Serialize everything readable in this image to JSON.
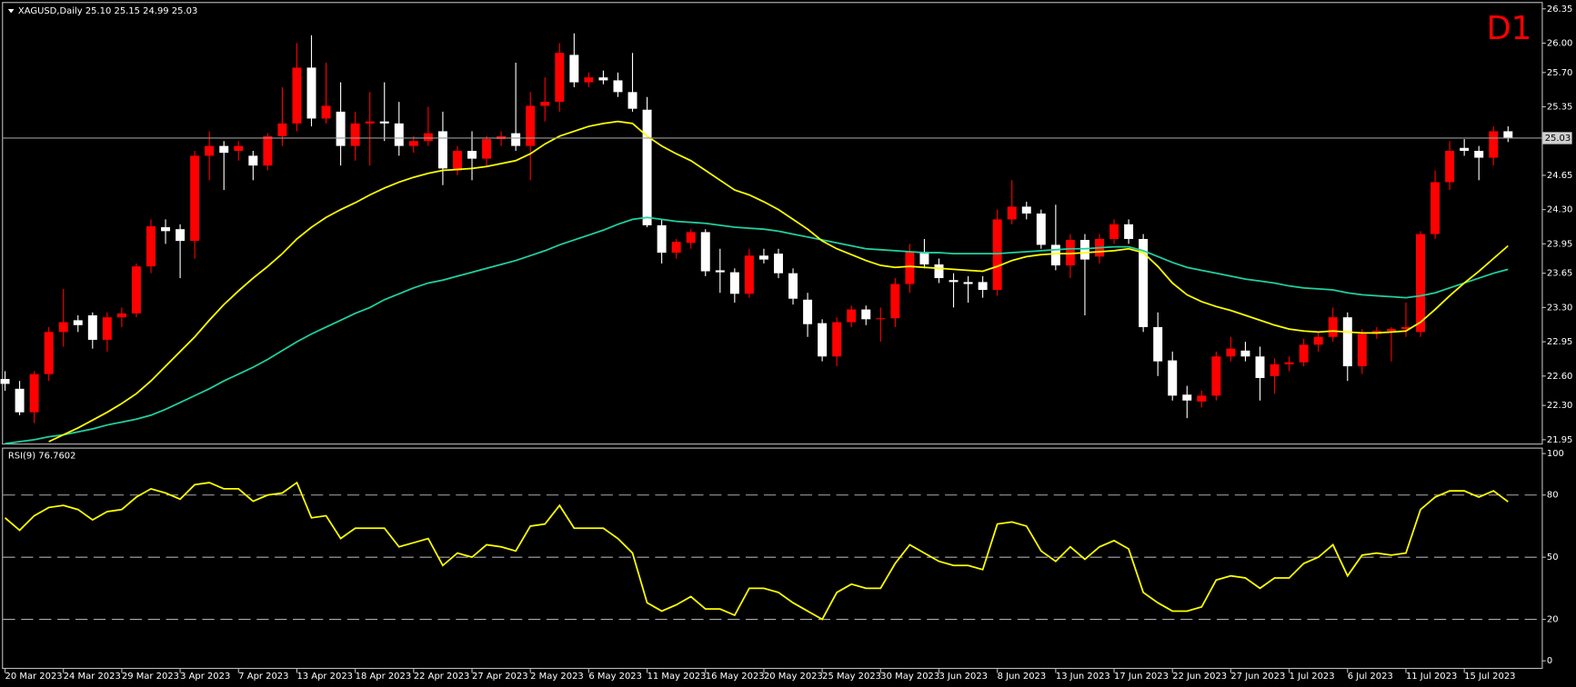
{
  "chart_data": [
    {
      "type": "candlestick",
      "title": "XAGUSD,Daily  25.10 25.15 24.99 25.03",
      "timeframe": "D1",
      "categories": [
        "20 Mar 2023",
        null,
        null,
        null,
        "24 Mar 2023",
        null,
        null,
        null,
        "29 Mar 2023",
        null,
        null,
        null,
        "3 Apr 2023",
        null,
        null,
        null,
        "7 Apr 2023",
        null,
        null,
        null,
        "13 Apr 2023",
        null,
        null,
        null,
        "18 Apr 2023",
        null,
        null,
        null,
        "22 Apr 2023",
        null,
        null,
        null,
        "27 Apr 2023",
        null,
        null,
        null,
        "2 May 2023",
        null,
        null,
        null,
        "6 May 2023",
        null,
        null,
        null,
        "11 May 2023",
        null,
        null,
        null,
        "16 May 2023",
        null,
        null,
        null,
        "20 May 2023",
        null,
        null,
        null,
        "25 May 2023",
        null,
        null,
        null,
        "30 May 2023",
        null,
        null,
        null,
        "3 Jun 2023",
        null,
        null,
        null,
        "8 Jun 2023",
        null,
        null,
        null,
        "13 Jun 2023",
        null,
        null,
        null,
        "17 Jun 2023",
        null,
        null,
        null,
        "22 Jun 2023",
        null,
        null,
        null,
        "27 Jun 2023",
        null,
        null,
        null,
        "1 Jul 2023",
        null,
        null,
        null,
        "6 Jul 2023",
        null,
        null,
        null,
        "11 Jul 2023",
        null,
        null,
        null,
        "15 Jul 2023",
        null,
        null,
        null
      ],
      "open": [
        22.57,
        22.47,
        22.23,
        22.62,
        23.05,
        23.17,
        23.22,
        22.97,
        23.2,
        23.24,
        23.72,
        24.12,
        24.1,
        23.98,
        24.85,
        24.95,
        24.9,
        24.85,
        24.75,
        25.05,
        25.18,
        25.75,
        25.23,
        25.3,
        24.95,
        25.18,
        25.2,
        25.18,
        24.95,
        25.0,
        25.1,
        24.7,
        24.9,
        24.82,
        25.02,
        25.08,
        24.95,
        25.36,
        25.4,
        25.88,
        25.6,
        25.65,
        25.62,
        25.5,
        25.32,
        24.14,
        23.86,
        23.96,
        24.07,
        23.68,
        23.66,
        23.44,
        23.83,
        23.85,
        23.65,
        23.38,
        23.14,
        22.8,
        23.15,
        23.28,
        23.18,
        23.19,
        23.54,
        23.87,
        23.74,
        23.58,
        23.56,
        23.56,
        23.48,
        24.2,
        24.33,
        24.26,
        23.94,
        23.73,
        23.99,
        23.82,
        24.0,
        24.15,
        24.0,
        23.1,
        22.76,
        22.41,
        22.34,
        22.4,
        22.8,
        22.86,
        22.8,
        22.6,
        22.72,
        22.74,
        22.92,
        23.0,
        23.2,
        22.7,
        23.03,
        23.06,
        23.08,
        23.05,
        24.05,
        24.58,
        24.93,
        24.9,
        24.83,
        25.1
      ],
      "high": [
        22.65,
        22.55,
        22.65,
        23.1,
        23.49,
        23.22,
        23.25,
        23.25,
        23.3,
        23.75,
        24.2,
        24.2,
        24.15,
        24.9,
        25.1,
        25.0,
        25.0,
        24.9,
        25.08,
        25.55,
        26.0,
        26.08,
        25.8,
        25.6,
        25.3,
        25.5,
        25.6,
        25.4,
        25.05,
        25.35,
        25.3,
        24.95,
        25.1,
        25.05,
        25.1,
        25.8,
        25.5,
        25.65,
        26.0,
        26.1,
        25.7,
        25.72,
        25.7,
        25.9,
        25.45,
        24.2,
        24.0,
        24.1,
        24.1,
        23.9,
        23.7,
        23.9,
        23.9,
        23.9,
        23.7,
        23.45,
        23.18,
        23.2,
        23.32,
        23.32,
        23.3,
        23.6,
        23.95,
        24.0,
        23.8,
        23.65,
        23.62,
        23.62,
        24.3,
        24.6,
        24.38,
        24.3,
        24.35,
        24.05,
        24.05,
        24.05,
        24.2,
        24.2,
        24.05,
        23.25,
        22.85,
        22.5,
        22.45,
        22.85,
        23.0,
        22.95,
        22.9,
        22.78,
        22.8,
        22.98,
        23.05,
        23.3,
        23.25,
        23.08,
        23.1,
        23.1,
        23.35,
        24.08,
        24.7,
        25.0,
        25.02,
        24.95,
        25.15,
        25.15
      ],
      "low": [
        22.45,
        22.2,
        22.12,
        22.55,
        22.9,
        23.05,
        22.88,
        22.85,
        23.1,
        23.2,
        23.65,
        23.95,
        23.6,
        23.8,
        24.6,
        24.5,
        24.8,
        24.6,
        24.7,
        24.95,
        25.1,
        25.15,
        25.18,
        24.75,
        24.8,
        24.75,
        25.0,
        24.85,
        24.88,
        24.95,
        24.55,
        24.65,
        24.6,
        24.75,
        24.95,
        24.9,
        24.6,
        25.2,
        25.3,
        25.55,
        25.55,
        25.58,
        25.45,
        25.3,
        24.12,
        23.75,
        23.8,
        23.9,
        23.62,
        23.45,
        23.35,
        23.4,
        23.75,
        23.6,
        23.33,
        23.0,
        22.75,
        22.7,
        23.1,
        23.12,
        22.95,
        23.1,
        23.45,
        23.7,
        23.55,
        23.3,
        23.35,
        23.4,
        23.42,
        24.15,
        24.2,
        23.9,
        23.68,
        23.6,
        23.22,
        23.75,
        23.95,
        23.95,
        23.05,
        22.6,
        22.35,
        22.17,
        22.28,
        22.35,
        22.75,
        22.75,
        22.35,
        22.42,
        22.65,
        22.7,
        22.85,
        22.95,
        22.55,
        22.62,
        22.98,
        22.75,
        23.0,
        23.0,
        24.0,
        24.5,
        24.85,
        24.6,
        24.75,
        24.99
      ],
      "close": [
        22.52,
        22.23,
        22.62,
        23.05,
        23.15,
        23.12,
        22.97,
        23.2,
        23.24,
        23.72,
        24.13,
        24.08,
        23.98,
        24.85,
        24.95,
        24.88,
        24.95,
        24.75,
        25.05,
        25.18,
        25.75,
        25.23,
        25.36,
        24.95,
        25.18,
        25.2,
        25.18,
        24.95,
        25.0,
        25.08,
        24.72,
        24.9,
        24.82,
        25.02,
        25.05,
        24.95,
        25.36,
        25.4,
        25.9,
        25.6,
        25.65,
        25.62,
        25.5,
        25.33,
        24.14,
        23.86,
        23.97,
        24.07,
        23.67,
        23.66,
        23.44,
        23.83,
        23.79,
        23.65,
        23.39,
        23.13,
        22.8,
        23.15,
        23.28,
        23.18,
        23.19,
        23.54,
        23.87,
        23.74,
        23.6,
        23.56,
        23.54,
        23.48,
        24.2,
        24.33,
        24.26,
        23.94,
        23.73,
        23.99,
        23.79,
        24.0,
        24.15,
        24.0,
        23.1,
        22.75,
        22.4,
        22.35,
        22.4,
        22.8,
        22.88,
        22.8,
        22.58,
        22.72,
        22.74,
        22.92,
        23.0,
        23.2,
        22.7,
        23.03,
        23.06,
        23.08,
        23.1,
        24.05,
        24.58,
        24.9,
        24.9,
        24.83,
        25.1,
        25.03
      ],
      "up_color": "#ff0000",
      "down_color": "#ffffff",
      "lines": [
        {
          "color": "#20d0a0",
          "values": [
            21.91,
            21.93,
            21.95,
            21.98,
            22.0,
            22.03,
            22.06,
            22.1,
            22.13,
            22.16,
            22.2,
            22.26,
            22.33,
            22.4,
            22.47,
            22.55,
            22.62,
            22.69,
            22.77,
            22.86,
            22.95,
            23.03,
            23.1,
            23.17,
            23.24,
            23.3,
            23.38,
            23.44,
            23.5,
            23.55,
            23.58,
            23.62,
            23.66,
            23.7,
            23.74,
            23.78,
            23.83,
            23.88,
            23.94,
            23.99,
            24.04,
            24.09,
            24.15,
            24.2,
            24.22,
            24.2,
            24.18,
            24.17,
            24.16,
            24.14,
            24.12,
            24.11,
            24.1,
            24.08,
            24.05,
            24.02,
            23.99,
            23.96,
            23.93,
            23.9,
            23.89,
            23.88,
            23.87,
            23.86,
            23.86,
            23.85,
            23.85,
            23.85,
            23.85,
            23.86,
            23.87,
            23.88,
            23.89,
            23.9,
            23.9,
            23.91,
            23.92,
            23.92,
            23.88,
            23.82,
            23.76,
            23.71,
            23.68,
            23.65,
            23.62,
            23.59,
            23.57,
            23.55,
            23.52,
            23.5,
            23.49,
            23.48,
            23.45,
            23.43,
            23.42,
            23.41,
            23.4,
            23.42,
            23.45,
            23.5,
            23.55,
            23.6,
            23.65,
            23.69
          ]
        },
        {
          "color": "#ffff00",
          "values": [
            null,
            null,
            null,
            21.93,
            22.0,
            22.07,
            22.15,
            22.23,
            22.32,
            22.42,
            22.55,
            22.7,
            22.85,
            23.0,
            23.17,
            23.33,
            23.47,
            23.6,
            23.72,
            23.85,
            24.0,
            24.12,
            24.22,
            24.3,
            24.37,
            24.45,
            24.52,
            24.58,
            24.63,
            24.67,
            24.7,
            24.71,
            24.72,
            24.74,
            24.77,
            24.8,
            24.87,
            24.97,
            25.05,
            25.1,
            25.15,
            25.18,
            25.2,
            25.18,
            25.05,
            24.95,
            24.87,
            24.8,
            24.7,
            24.6,
            24.5,
            24.45,
            24.38,
            24.3,
            24.2,
            24.1,
            23.98,
            23.9,
            23.84,
            23.78,
            23.73,
            23.71,
            23.72,
            23.71,
            23.7,
            23.69,
            23.68,
            23.67,
            23.72,
            23.78,
            23.82,
            23.84,
            23.85,
            23.85,
            23.86,
            23.87,
            23.88,
            23.9,
            23.86,
            23.72,
            23.55,
            23.43,
            23.36,
            23.31,
            23.27,
            23.22,
            23.17,
            23.12,
            23.08,
            23.06,
            23.05,
            23.06,
            23.05,
            23.04,
            23.04,
            23.05,
            23.06,
            23.15,
            23.28,
            23.42,
            23.55,
            23.67,
            23.8,
            23.93
          ]
        }
      ],
      "ylim": [
        21.9,
        26.42
      ],
      "yticks": [
        {
          "value": 26.35,
          "label": "26.35"
        },
        {
          "value": 26,
          "label": "26.00"
        },
        {
          "value": 25.7,
          "label": "25.70"
        },
        {
          "value": 25.35,
          "label": "25.35"
        },
        {
          "value": 24.65,
          "label": "24.65"
        },
        {
          "value": 24.3,
          "label": "24.30"
        },
        {
          "value": 23.95,
          "label": "23.95"
        },
        {
          "value": 23.65,
          "label": "23.65"
        },
        {
          "value": 23.3,
          "label": "23.30"
        },
        {
          "value": 22.95,
          "label": "22.95"
        },
        {
          "value": 22.6,
          "label": "22.60"
        },
        {
          "value": 22.3,
          "label": "22.30"
        },
        {
          "value": 21.95,
          "label": "21.95"
        }
      ]
    },
    {
      "type": "line",
      "label": "RSI(9)",
      "color": "#ffff00",
      "values": [
        69,
        63,
        70,
        74,
        75,
        73,
        68,
        72,
        73,
        79,
        83,
        81,
        78,
        85,
        86,
        83,
        83,
        77,
        80,
        81,
        86,
        69,
        70,
        59,
        64,
        64,
        64,
        55,
        57,
        59,
        46,
        52,
        50,
        56,
        55,
        53,
        65,
        66,
        75,
        64,
        64,
        64,
        59,
        52,
        28,
        24,
        27,
        31,
        25,
        25,
        22,
        35,
        35,
        33,
        28,
        24,
        20,
        33,
        37,
        35,
        35,
        47,
        56,
        52,
        48,
        46,
        46,
        44,
        66,
        67,
        65,
        53,
        48,
        55,
        49,
        55,
        58,
        54,
        33,
        28,
        24,
        24,
        26,
        39,
        41,
        40,
        35,
        40,
        40,
        47,
        50,
        56,
        41,
        51,
        52,
        51,
        52,
        73,
        79,
        82,
        82,
        79,
        82,
        76.7602
      ],
      "ylim": [
        -3.9,
        102.4
      ],
      "yticks": [
        100,
        80,
        50,
        20,
        0
      ],
      "levels": [
        80,
        50,
        20
      ]
    }
  ]
}
